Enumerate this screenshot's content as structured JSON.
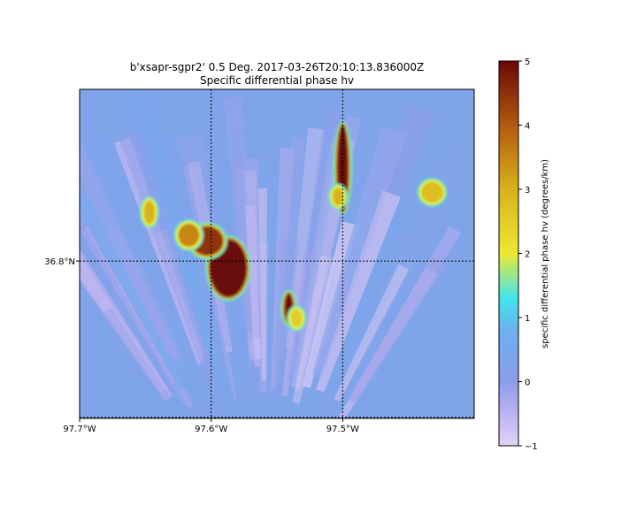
{
  "chart_data": {
    "type": "heatmap",
    "title": "b'xsapr-sgpr2' 0.5 Deg. 2017-03-26T20:10:13.836000Z",
    "subtitle": "Specific differential phase hv",
    "x_axis": {
      "range": [
        -97.7,
        -97.4
      ],
      "ticks": [
        {
          "value": -97.7,
          "label": "97.7°W"
        },
        {
          "value": -97.6,
          "label": "97.6°W"
        },
        {
          "value": -97.5,
          "label": "97.5°W"
        }
      ]
    },
    "y_axis": {
      "range": [
        36.69,
        36.92
      ],
      "ticks": [
        {
          "value": 36.8,
          "label": "36.8°N"
        }
      ]
    },
    "grid": "dotted",
    "colorbar": {
      "label": "specific differential phase hv (degrees/km)",
      "range": [
        -1,
        5
      ],
      "ticks": [
        -1,
        0,
        1,
        2,
        3,
        4,
        5
      ],
      "colormap": [
        {
          "value": -1.0,
          "color": "#e2d4f4"
        },
        {
          "value": -0.5,
          "color": "#bcb2f0"
        },
        {
          "value": 0.0,
          "color": "#8c9de8"
        },
        {
          "value": 0.8,
          "color": "#6db0ee"
        },
        {
          "value": 1.3,
          "color": "#41e6ec"
        },
        {
          "value": 2.0,
          "color": "#ece833"
        },
        {
          "value": 3.0,
          "color": "#d8b21b"
        },
        {
          "value": 4.0,
          "color": "#b35a10"
        },
        {
          "value": 5.0,
          "color": "#6b0707"
        }
      ]
    },
    "background_value": 0.3,
    "echo_features": [
      {
        "lon": -97.5,
        "lat": 36.865,
        "value": 5.0,
        "extent_lon": 0.004,
        "extent_lat": 0.03
      },
      {
        "lon": -97.5035,
        "lat": 36.845,
        "value": 3.0,
        "extent_lon": 0.004,
        "extent_lat": 0.006
      },
      {
        "lon": -97.587,
        "lat": 36.795,
        "value": 5.0,
        "extent_lon": 0.014,
        "extent_lat": 0.02
      },
      {
        "lon": -97.603,
        "lat": 36.814,
        "value": 4.5,
        "extent_lon": 0.012,
        "extent_lat": 0.01
      },
      {
        "lon": -97.617,
        "lat": 36.818,
        "value": 3.5,
        "extent_lon": 0.008,
        "extent_lat": 0.008
      },
      {
        "lon": -97.647,
        "lat": 36.834,
        "value": 3.0,
        "extent_lon": 0.004,
        "extent_lat": 0.008
      },
      {
        "lon": -97.541,
        "lat": 36.767,
        "value": 5.0,
        "extent_lon": 0.003,
        "extent_lat": 0.01
      },
      {
        "lon": -97.535,
        "lat": 36.76,
        "value": 2.5,
        "extent_lon": 0.004,
        "extent_lat": 0.006
      },
      {
        "lon": -97.432,
        "lat": 36.848,
        "value": 2.8,
        "extent_lon": 0.008,
        "extent_lat": 0.007
      }
    ]
  }
}
